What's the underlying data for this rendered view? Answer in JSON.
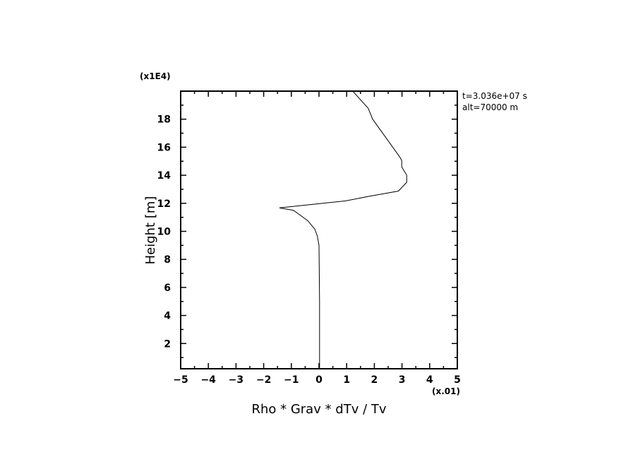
{
  "chart_data": {
    "type": "line",
    "title": "",
    "xlabel": "Rho * Grav * dTv / Tv",
    "ylabel": "Height [m]",
    "x_multiplier": "(x.01)",
    "y_multiplier": "(x1E4)",
    "xlim": [
      -5,
      5
    ],
    "ylim": [
      0.2,
      20
    ],
    "xticks": [
      -5,
      -4,
      -3,
      -2,
      -1,
      0,
      1,
      2,
      3,
      4,
      5
    ],
    "yticks": [
      2,
      4,
      6,
      8,
      10,
      12,
      14,
      16,
      18
    ],
    "grid": false,
    "annotations": [
      "t=3.036e+07 s",
      "alt=70000 m"
    ],
    "series": [
      {
        "color": "#000000",
        "x": [
          0.02,
          0.02,
          0.0,
          -0.06,
          -0.15,
          -0.4,
          -0.92,
          -1.43,
          0.96,
          1.81,
          2.87,
          3.17,
          3.17,
          2.99,
          2.99,
          2.92,
          1.94,
          1.78,
          1.22
        ],
        "y": [
          0.2,
          5.0,
          9.0,
          9.67,
          10.15,
          10.75,
          11.5,
          11.67,
          12.17,
          12.5,
          12.87,
          13.5,
          14.0,
          14.6,
          15.05,
          15.3,
          18.0,
          18.77,
          20.0
        ]
      }
    ]
  }
}
